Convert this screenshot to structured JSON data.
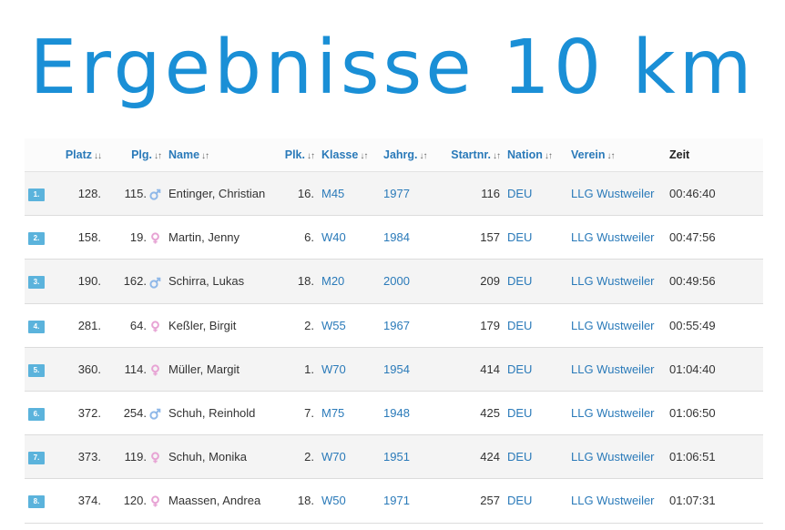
{
  "title": "Ergebnisse 10 km",
  "colors": {
    "title": "#1a8fd6",
    "link": "#2a7ab9",
    "badge": "#5bb3dc",
    "male": "#8fb8e8",
    "female": "#e7a3d4"
  },
  "columns": {
    "platz": "Platz",
    "plg": "Plg.",
    "name": "Name",
    "plk": "Plk.",
    "klasse": "Klasse",
    "jahrg": "Jahrg.",
    "startnr": "Startnr.",
    "nation": "Nation",
    "verein": "Verein",
    "zeit": "Zeit"
  },
  "sort_icons": {
    "platz": "↓↓",
    "other": "↓↑"
  },
  "rows": [
    {
      "idx": "1.",
      "platz": "128.",
      "plg": "115.",
      "sex": "male-icon",
      "name": "Entinger, Christian",
      "plk": "16.",
      "klasse": "M45",
      "jahrg": "1977",
      "startnr": "116",
      "nation": "DEU",
      "verein": "LLG Wustweiler",
      "zeit": "00:46:40"
    },
    {
      "idx": "2.",
      "platz": "158.",
      "plg": "19.",
      "sex": "female-icon",
      "name": "Martin, Jenny",
      "plk": "6.",
      "klasse": "W40",
      "jahrg": "1984",
      "startnr": "157",
      "nation": "DEU",
      "verein": "LLG Wustweiler",
      "zeit": "00:47:56"
    },
    {
      "idx": "3.",
      "platz": "190.",
      "plg": "162.",
      "sex": "male-icon",
      "name": "Schirra, Lukas",
      "plk": "18.",
      "klasse": "M20",
      "jahrg": "2000",
      "startnr": "209",
      "nation": "DEU",
      "verein": "LLG Wustweiler",
      "zeit": "00:49:56"
    },
    {
      "idx": "4.",
      "platz": "281.",
      "plg": "64.",
      "sex": "female-icon",
      "name": "Keßler, Birgit",
      "plk": "2.",
      "klasse": "W55",
      "jahrg": "1967",
      "startnr": "179",
      "nation": "DEU",
      "verein": "LLG Wustweiler",
      "zeit": "00:55:49"
    },
    {
      "idx": "5.",
      "platz": "360.",
      "plg": "114.",
      "sex": "female-icon",
      "name": "Müller, Margit",
      "plk": "1.",
      "klasse": "W70",
      "jahrg": "1954",
      "startnr": "414",
      "nation": "DEU",
      "verein": "LLG Wustweiler",
      "zeit": "01:04:40"
    },
    {
      "idx": "6.",
      "platz": "372.",
      "plg": "254.",
      "sex": "male-icon",
      "name": "Schuh, Reinhold",
      "plk": "7.",
      "klasse": "M75",
      "jahrg": "1948",
      "startnr": "425",
      "nation": "DEU",
      "verein": "LLG Wustweiler",
      "zeit": "01:06:50"
    },
    {
      "idx": "7.",
      "platz": "373.",
      "plg": "119.",
      "sex": "female-icon",
      "name": "Schuh, Monika",
      "plk": "2.",
      "klasse": "W70",
      "jahrg": "1951",
      "startnr": "424",
      "nation": "DEU",
      "verein": "LLG Wustweiler",
      "zeit": "01:06:51"
    },
    {
      "idx": "8.",
      "platz": "374.",
      "plg": "120.",
      "sex": "female-icon",
      "name": "Maassen, Andrea",
      "plk": "18.",
      "klasse": "W50",
      "jahrg": "1971",
      "startnr": "257",
      "nation": "DEU",
      "verein": "LLG Wustweiler",
      "zeit": "01:07:31"
    }
  ]
}
